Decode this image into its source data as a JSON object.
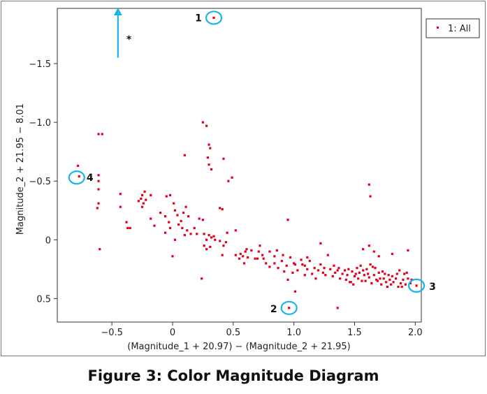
{
  "chart_data": {
    "type": "scatter",
    "title": "",
    "xlabel": "(Magnitude_1 + 20.97) − (Magnitude_2 + 21.95)",
    "ylabel": "Magnitude_2 + 21.95 − 8.01",
    "xlim": [
      -0.95,
      2.05
    ],
    "ylim": [
      0.7,
      -1.97
    ],
    "y_inverted": true,
    "grid": false,
    "x_ticks": [
      -0.5,
      0,
      0.5,
      1.0,
      1.5,
      2.0
    ],
    "x_tick_labels": [
      "−0.5",
      "0",
      "0.5",
      "1.0",
      "1.5",
      "2.0"
    ],
    "y_ticks": [
      -1.5,
      -1.0,
      -0.5,
      0,
      0.5
    ],
    "y_tick_labels": [
      "−1.5",
      "−1.0",
      "−0.5",
      "0",
      "0.5"
    ],
    "legend": {
      "placement": "top-right",
      "entries": [
        "1: All"
      ]
    },
    "series": [
      {
        "name": "1: All",
        "color": "#e3001b",
        "points": [
          [
            0.34,
            -1.89
          ],
          [
            -0.58,
            -0.9
          ],
          [
            -0.61,
            -0.9
          ],
          [
            -0.78,
            -0.63
          ],
          [
            -0.77,
            -0.54
          ],
          [
            -0.61,
            -0.55
          ],
          [
            -0.61,
            -0.5
          ],
          [
            -0.61,
            -0.43
          ],
          [
            -0.61,
            -0.31
          ],
          [
            -0.62,
            -0.27
          ],
          [
            -0.6,
            0.08
          ],
          [
            -0.43,
            -0.39
          ],
          [
            -0.43,
            -0.28
          ],
          [
            -0.38,
            -0.15
          ],
          [
            -0.37,
            -0.1
          ],
          [
            -0.35,
            -0.1
          ],
          [
            -0.28,
            -0.33
          ],
          [
            -0.25,
            -0.38
          ],
          [
            -0.24,
            -0.31
          ],
          [
            -0.23,
            -0.41
          ],
          [
            -0.22,
            -0.34
          ],
          [
            -0.18,
            -0.38
          ],
          [
            -0.25,
            -0.28
          ],
          [
            -0.26,
            -0.35
          ],
          [
            -0.18,
            -0.18
          ],
          [
            -0.15,
            -0.12
          ],
          [
            -0.1,
            -0.23
          ],
          [
            -0.06,
            -0.2
          ],
          [
            -0.03,
            -0.15
          ],
          [
            -0.06,
            -0.06
          ],
          [
            -0.02,
            -0.1
          ],
          [
            -0.05,
            -0.37
          ],
          [
            -0.02,
            -0.38
          ],
          [
            0.01,
            -0.31
          ],
          [
            0.02,
            -0.25
          ],
          [
            0.04,
            -0.21
          ],
          [
            0.05,
            -0.13
          ],
          [
            0.07,
            -0.16
          ],
          [
            0.09,
            -0.23
          ],
          [
            0.11,
            -0.28
          ],
          [
            0.13,
            -0.2
          ],
          [
            0.08,
            -0.1
          ],
          [
            0.1,
            -0.04
          ],
          [
            0.12,
            -0.08
          ],
          [
            0.02,
            0.0
          ],
          [
            0.0,
            0.14
          ],
          [
            0.15,
            -0.05
          ],
          [
            0.18,
            -0.1
          ],
          [
            0.2,
            -0.05
          ],
          [
            0.22,
            -0.18
          ],
          [
            0.25,
            -0.17
          ],
          [
            0.26,
            -0.05
          ],
          [
            0.28,
            0.0
          ],
          [
            0.3,
            -0.04
          ],
          [
            0.32,
            -0.02
          ],
          [
            0.34,
            -0.03
          ],
          [
            0.26,
            0.05
          ],
          [
            0.24,
            0.33
          ],
          [
            0.28,
            0.08
          ],
          [
            0.31,
            0.06
          ],
          [
            0.35,
            0.0
          ],
          [
            0.39,
            0.01
          ],
          [
            0.42,
            0.05
          ],
          [
            0.44,
            0.02
          ],
          [
            0.45,
            -0.06
          ],
          [
            0.41,
            0.13
          ],
          [
            0.39,
            -0.27
          ],
          [
            0.41,
            -0.26
          ],
          [
            0.52,
            -0.08
          ],
          [
            0.49,
            -0.53
          ],
          [
            0.46,
            -0.5
          ],
          [
            0.42,
            -0.69
          ],
          [
            0.25,
            -1.0
          ],
          [
            0.28,
            -0.97
          ],
          [
            0.3,
            -0.81
          ],
          [
            0.31,
            -0.78
          ],
          [
            0.29,
            -0.7
          ],
          [
            0.3,
            -0.64
          ],
          [
            0.32,
            -0.6
          ],
          [
            0.1,
            -0.72
          ],
          [
            0.52,
            0.13
          ],
          [
            0.56,
            0.12
          ],
          [
            0.58,
            0.14
          ],
          [
            0.6,
            0.1
          ],
          [
            0.62,
            0.15
          ],
          [
            0.59,
            0.2
          ],
          [
            0.65,
            0.09
          ],
          [
            0.68,
            0.16
          ],
          [
            0.71,
            0.1
          ],
          [
            0.74,
            0.13
          ],
          [
            0.77,
            0.2
          ],
          [
            0.8,
            0.1
          ],
          [
            0.84,
            0.14
          ],
          [
            0.87,
            0.24
          ],
          [
            0.9,
            0.18
          ],
          [
            0.92,
            0.27
          ],
          [
            0.94,
            0.22
          ],
          [
            0.97,
            0.15
          ],
          [
            1.0,
            0.2
          ],
          [
            1.03,
            0.26
          ],
          [
            1.06,
            0.17
          ],
          [
            1.09,
            0.22
          ],
          [
            1.11,
            0.25
          ],
          [
            1.13,
            0.18
          ],
          [
            1.15,
            0.29
          ],
          [
            1.18,
            0.33
          ],
          [
            1.2,
            0.26
          ],
          [
            1.22,
            0.21
          ],
          [
            1.24,
            0.28
          ],
          [
            1.26,
            0.3
          ],
          [
            1.28,
            0.13
          ],
          [
            1.3,
            0.25
          ],
          [
            1.32,
            0.31
          ],
          [
            1.34,
            0.28
          ],
          [
            1.36,
            0.26
          ],
          [
            1.38,
            0.33
          ],
          [
            1.4,
            0.29
          ],
          [
            1.42,
            0.26
          ],
          [
            1.44,
            0.3
          ],
          [
            1.46,
            0.36
          ],
          [
            1.48,
            0.27
          ],
          [
            1.5,
            0.31
          ],
          [
            1.52,
            0.24
          ],
          [
            1.54,
            0.28
          ],
          [
            1.56,
            0.35
          ],
          [
            1.58,
            0.3
          ],
          [
            1.6,
            0.25
          ],
          [
            1.62,
            0.32
          ],
          [
            1.64,
            0.37
          ],
          [
            1.66,
            0.3
          ],
          [
            1.68,
            0.34
          ],
          [
            1.7,
            0.28
          ],
          [
            1.72,
            0.38
          ],
          [
            1.74,
            0.33
          ],
          [
            1.76,
            0.36
          ],
          [
            1.78,
            0.3
          ],
          [
            1.8,
            0.38
          ],
          [
            1.82,
            0.36
          ],
          [
            1.84,
            0.33
          ],
          [
            1.86,
            0.4
          ],
          [
            1.88,
            0.37
          ],
          [
            1.9,
            0.34
          ],
          [
            1.92,
            0.38
          ],
          [
            1.94,
            0.33
          ],
          [
            1.96,
            0.37
          ],
          [
            1.47,
            0.36
          ],
          [
            1.55,
            0.22
          ],
          [
            1.61,
            0.29
          ],
          [
            1.69,
            0.35
          ],
          [
            1.75,
            0.29
          ],
          [
            1.81,
            0.31
          ],
          [
            1.87,
            0.26
          ],
          [
            1.93,
            0.28
          ],
          [
            1.73,
            0.27
          ],
          [
            1.67,
            0.24
          ],
          [
            1.59,
            0.35
          ],
          [
            1.53,
            0.33
          ],
          [
            1.49,
            0.38
          ],
          [
            1.43,
            0.34
          ],
          [
            1.37,
            0.24
          ],
          [
            1.25,
            0.24
          ],
          [
            1.17,
            0.24
          ],
          [
            1.07,
            0.21
          ],
          [
            0.99,
            0.28
          ],
          [
            0.95,
            0.34
          ],
          [
            1.01,
            0.21
          ],
          [
            1.09,
            0.3
          ],
          [
            1.33,
            0.22
          ],
          [
            1.63,
            0.21
          ],
          [
            1.79,
            0.34
          ],
          [
            1.91,
            0.29
          ],
          [
            1.97,
            0.34
          ],
          [
            1.89,
            0.4
          ],
          [
            1.85,
            0.29
          ],
          [
            1.77,
            0.4
          ],
          [
            1.71,
            0.33
          ],
          [
            1.65,
            0.23
          ],
          [
            1.57,
            0.26
          ],
          [
            1.51,
            0.29
          ],
          [
            1.45,
            0.25
          ],
          [
            1.62,
            0.05
          ],
          [
            1.66,
            0.1
          ],
          [
            1.57,
            0.08
          ],
          [
            1.7,
            0.14
          ],
          [
            1.94,
            0.09
          ],
          [
            1.81,
            0.12
          ],
          [
            1.22,
            0.03
          ],
          [
            0.95,
            -0.17
          ],
          [
            0.72,
            0.05
          ],
          [
            0.7,
            0.16
          ],
          [
            0.61,
            0.08
          ],
          [
            0.55,
            0.16
          ],
          [
            0.75,
            0.16
          ],
          [
            0.8,
            0.23
          ],
          [
            0.84,
            0.2
          ],
          [
            1.62,
            -0.47
          ],
          [
            1.63,
            -0.37
          ],
          [
            1.36,
            0.58
          ],
          [
            1.01,
            0.44
          ],
          [
            0.96,
            0.58
          ],
          [
            1.11,
            0.15
          ],
          [
            0.91,
            0.13
          ],
          [
            0.86,
            0.09
          ],
          [
            2.01,
            0.39
          ]
        ]
      }
    ],
    "callouts": [
      {
        "label": "1",
        "x": 0.34,
        "y": -1.89
      },
      {
        "label": "2",
        "x": 0.96,
        "y": 0.58
      },
      {
        "label": "3",
        "x": 2.01,
        "y": 0.39
      },
      {
        "label": "4",
        "x": -0.79,
        "y": -0.53
      }
    ],
    "arrow": {
      "x": -0.45,
      "y_from": -1.55,
      "y_to": -1.97,
      "label": "*"
    }
  },
  "caption": "Figure 3: Color Magnitude Diagram",
  "colors": {
    "points": "#e3001b",
    "callout": "#1ab4e8",
    "frame": "#7a7a7a",
    "axis": "#333333"
  }
}
